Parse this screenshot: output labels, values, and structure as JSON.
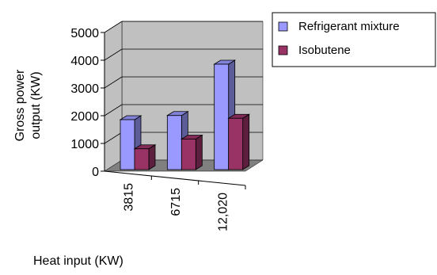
{
  "chart_data": {
    "type": "bar",
    "style": "3d-clustered-column",
    "categories": [
      "3815",
      "6715",
      "12,020"
    ],
    "series": [
      {
        "name": "Refrigerant mixture",
        "values": [
          1800,
          1950,
          3800
        ],
        "color": "#9999FF"
      },
      {
        "name": "Isobutene",
        "values": [
          750,
          1100,
          1850
        ],
        "color": "#993366"
      }
    ],
    "xlabel": "Heat input (KW)",
    "ylabel_lines": [
      "Gross power",
      "output (KW)"
    ],
    "yticks": [
      "0",
      "1000",
      "2000",
      "3000",
      "4000",
      "5000"
    ],
    "ylim": [
      0,
      5000
    ],
    "grid": true,
    "legend_position": "top-right",
    "walls_color": "#C0C0C0",
    "floor_color": "#808080"
  }
}
